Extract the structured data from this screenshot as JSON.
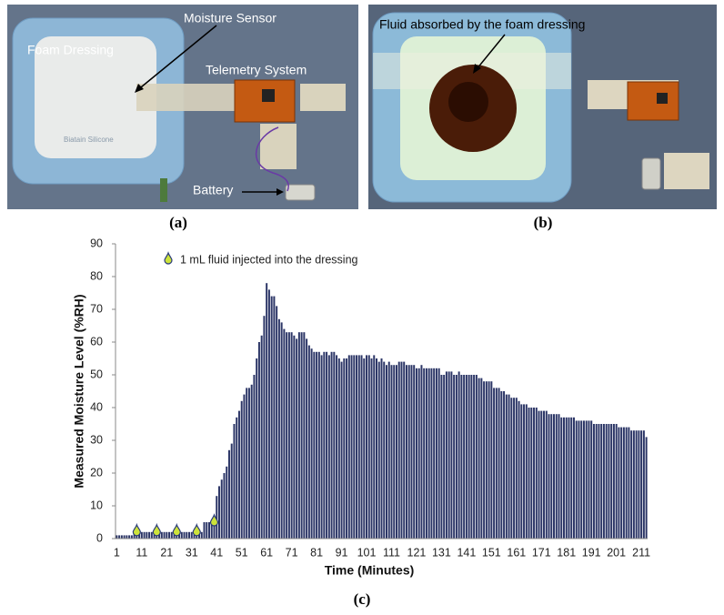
{
  "panels": {
    "a": {
      "label": "(a)",
      "annotations": [
        "Moisture Sensor",
        "Foam Dressing",
        "Telemetry System",
        "Battery"
      ],
      "brand": "Biatain Silicone"
    },
    "b": {
      "label": "(b)",
      "annotations": [
        "Fluid absorbed by the foam dressing"
      ]
    },
    "c": {
      "label": "(c)"
    }
  },
  "chart_data": {
    "type": "bar",
    "x_label": "Time (Minutes)",
    "y_label": "Measured Moisture Level (%RH)",
    "categories": [
      "1",
      null,
      null,
      null,
      null,
      null,
      null,
      null,
      null,
      null,
      "11",
      null,
      null,
      null,
      null,
      null,
      null,
      null,
      null,
      null,
      "21",
      null,
      null,
      null,
      null,
      null,
      null,
      null,
      null,
      null,
      "31",
      null,
      null,
      null,
      null,
      null,
      null,
      null,
      null,
      null,
      "41",
      null,
      null,
      null,
      null,
      null,
      null,
      null,
      null,
      null,
      "51",
      null,
      null,
      null,
      null,
      null,
      null,
      null,
      null,
      null,
      "61",
      null,
      null,
      null,
      null,
      null,
      null,
      null,
      null,
      null,
      "71",
      null,
      null,
      null,
      null,
      null,
      null,
      null,
      null,
      null,
      "81",
      null,
      null,
      null,
      null,
      null,
      null,
      null,
      null,
      null,
      "91",
      null,
      null,
      null,
      null,
      null,
      null,
      null,
      null,
      null,
      "101",
      null,
      null,
      null,
      null,
      null,
      null,
      null,
      null,
      null,
      "111",
      null,
      null,
      null,
      null,
      null,
      null,
      null,
      null,
      null,
      "121",
      null,
      null,
      null,
      null,
      null,
      null,
      null,
      null,
      null,
      "131",
      null,
      null,
      null,
      null,
      null,
      null,
      null,
      null,
      null,
      "141",
      null,
      null,
      null,
      null,
      null,
      null,
      null,
      null,
      null,
      "151",
      null,
      null,
      null,
      null,
      null,
      null,
      null,
      null,
      null,
      "161",
      null,
      null,
      null,
      null,
      null,
      null,
      null,
      null,
      null,
      "171",
      null,
      null,
      null,
      null,
      null,
      null,
      null,
      null,
      null,
      "181",
      null,
      null,
      null,
      null,
      null,
      null,
      null,
      null,
      null,
      "191",
      null,
      null,
      null,
      null,
      null,
      null,
      null,
      null,
      null,
      "201",
      null,
      null,
      null,
      null,
      null,
      null,
      null,
      null,
      null,
      "211",
      null,
      null
    ],
    "values": [
      1,
      1,
      1,
      1,
      1,
      1,
      1,
      2,
      2,
      2,
      2,
      2,
      2,
      2,
      2,
      2,
      2,
      2,
      2,
      2,
      2,
      2,
      2,
      2,
      2,
      2,
      2,
      2,
      2,
      2,
      2,
      2,
      2,
      2,
      2,
      5,
      5,
      5,
      5,
      5,
      13,
      16,
      18,
      20,
      22,
      27,
      29,
      35,
      37,
      39,
      42,
      44,
      46,
      46,
      47,
      50,
      55,
      60,
      62,
      68,
      78,
      76,
      74,
      74,
      71,
      67,
      66,
      64,
      63,
      63,
      63,
      62,
      61,
      63,
      63,
      63,
      61,
      59,
      58,
      57,
      57,
      57,
      56,
      57,
      57,
      56,
      57,
      57,
      56,
      55,
      54,
      55,
      55,
      56,
      56,
      56,
      56,
      56,
      56,
      55,
      56,
      56,
      55,
      56,
      55,
      54,
      55,
      54,
      53,
      54,
      53,
      53,
      53,
      54,
      54,
      54,
      53,
      53,
      53,
      53,
      52,
      52,
      53,
      52,
      52,
      52,
      52,
      52,
      52,
      52,
      50,
      50,
      51,
      51,
      51,
      50,
      50,
      51,
      50,
      50,
      50,
      50,
      50,
      50,
      50,
      49,
      49,
      48,
      48,
      48,
      48,
      46,
      46,
      46,
      45,
      45,
      44,
      44,
      43,
      43,
      43,
      42,
      41,
      41,
      41,
      40,
      40,
      40,
      40,
      39,
      39,
      39,
      39,
      38,
      38,
      38,
      38,
      38,
      37,
      37,
      37,
      37,
      37,
      37,
      36,
      36,
      36,
      36,
      36,
      36,
      36,
      35,
      35,
      35,
      35,
      35,
      35,
      35,
      35,
      35,
      35,
      34,
      34,
      34,
      34,
      34,
      33,
      33,
      33,
      33,
      33,
      33,
      31
    ],
    "color": "#2b3566",
    "ylim": [
      0,
      90
    ],
    "yticks": [
      0,
      10,
      20,
      30,
      40,
      50,
      60,
      70,
      80,
      90
    ],
    "injections": {
      "name": "1 mL fluid injected into the dressing",
      "color": "#cde33a",
      "x": [
        9,
        17,
        25,
        33,
        40
      ]
    }
  }
}
